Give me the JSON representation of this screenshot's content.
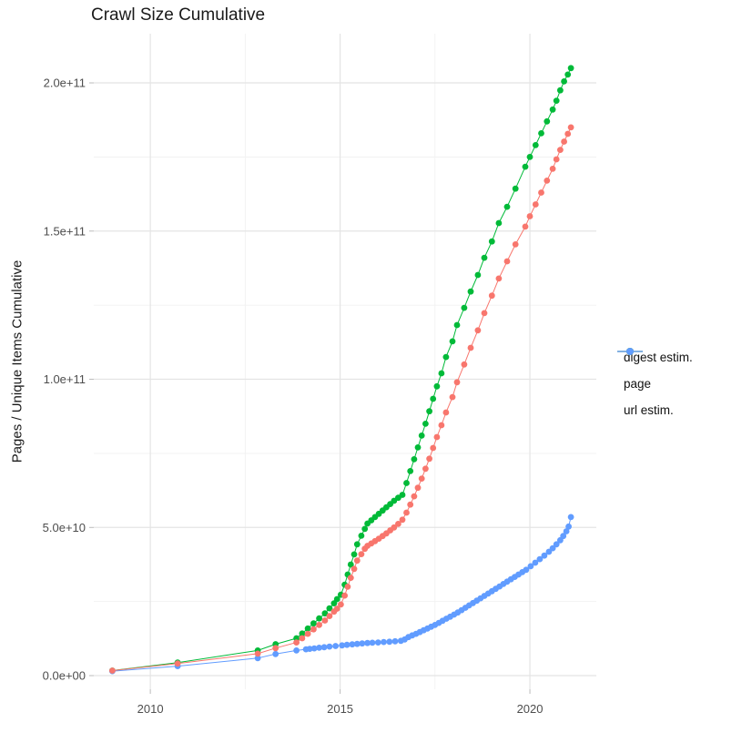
{
  "chart_data": {
    "type": "scatter",
    "title": "Crawl Size Cumulative",
    "xlabel": "",
    "ylabel": "Pages / Unique Items Cumulative",
    "legend_position": "right",
    "grid": "major and minor gridlines, light gray on white",
    "x_domain": [
      2008.51,
      2021.75
    ],
    "y_domain_billions": [
      -4.6,
      216.6
    ],
    "x_axis": {
      "ticks": [
        {
          "value": 2010,
          "label": "2010"
        },
        {
          "value": 2015,
          "label": "2015"
        },
        {
          "value": 2020,
          "label": "2020"
        }
      ],
      "minor": [
        2012.5,
        2017.5
      ]
    },
    "y_axis": {
      "ticks": [
        {
          "value_billions": 0,
          "label": "0.0e+00"
        },
        {
          "value_billions": 50,
          "label": "5.0e+10"
        },
        {
          "value_billions": 100,
          "label": "1.0e+11"
        },
        {
          "value_billions": 150,
          "label": "1.5e+11"
        },
        {
          "value_billions": 200,
          "label": "2.0e+11"
        }
      ],
      "minor_billions": [
        25,
        75,
        125,
        175
      ]
    },
    "draw_order": [
      "page",
      "url estim.",
      "digest estim."
    ],
    "series": [
      {
        "name": "digest estim.",
        "color": "#F8766D",
        "points_year_billions": [
          [
            2009.0,
            1.7
          ],
          [
            2010.72,
            4.1
          ],
          [
            2012.83,
            7.4
          ],
          [
            2013.3,
            9.3
          ],
          [
            2013.85,
            11.2
          ],
          [
            2014.0,
            12.6
          ],
          [
            2014.15,
            14.1
          ],
          [
            2014.3,
            15.6
          ],
          [
            2014.45,
            17.1
          ],
          [
            2014.6,
            18.6
          ],
          [
            2014.72,
            20.1
          ],
          [
            2014.84,
            21.6
          ],
          [
            2014.92,
            22.6
          ],
          [
            2015.02,
            24.0
          ],
          [
            2015.12,
            27.0
          ],
          [
            2015.2,
            30.0
          ],
          [
            2015.28,
            33.0
          ],
          [
            2015.37,
            36.0
          ],
          [
            2015.45,
            38.8
          ],
          [
            2015.56,
            41.0
          ],
          [
            2015.65,
            42.8
          ],
          [
            2015.72,
            43.8
          ],
          [
            2015.82,
            44.6
          ],
          [
            2015.92,
            45.4
          ],
          [
            2016.02,
            46.2
          ],
          [
            2016.12,
            47.1
          ],
          [
            2016.22,
            48.0
          ],
          [
            2016.32,
            49.0
          ],
          [
            2016.42,
            50.0
          ],
          [
            2016.53,
            51.2
          ],
          [
            2016.64,
            52.6
          ],
          [
            2016.75,
            55.0
          ],
          [
            2016.85,
            57.7
          ],
          [
            2016.95,
            60.5
          ],
          [
            2017.05,
            63.4
          ],
          [
            2017.15,
            66.5
          ],
          [
            2017.25,
            69.8
          ],
          [
            2017.35,
            73.2
          ],
          [
            2017.45,
            76.8
          ],
          [
            2017.55,
            80.5
          ],
          [
            2017.67,
            84.5
          ],
          [
            2017.79,
            88.8
          ],
          [
            2017.96,
            94.0
          ],
          [
            2018.08,
            99.0
          ],
          [
            2018.27,
            105.0
          ],
          [
            2018.44,
            110.6
          ],
          [
            2018.63,
            116.5
          ],
          [
            2018.8,
            122.3
          ],
          [
            2019.0,
            128.2
          ],
          [
            2019.18,
            134.0
          ],
          [
            2019.4,
            139.8
          ],
          [
            2019.62,
            145.5
          ],
          [
            2019.88,
            151.5
          ],
          [
            2020.0,
            155.0
          ],
          [
            2020.15,
            159.0
          ],
          [
            2020.3,
            163.0
          ],
          [
            2020.45,
            167.0
          ],
          [
            2020.6,
            171.0
          ],
          [
            2020.7,
            174.2
          ],
          [
            2020.8,
            177.4
          ],
          [
            2020.9,
            180.2
          ],
          [
            2021.0,
            182.8
          ],
          [
            2021.08,
            185.0
          ]
        ]
      },
      {
        "name": "page",
        "color": "#00BA38",
        "points_year_billions": [
          [
            2009.0,
            1.7
          ],
          [
            2010.72,
            4.4
          ],
          [
            2012.83,
            8.5
          ],
          [
            2013.3,
            10.6
          ],
          [
            2013.85,
            12.6
          ],
          [
            2014.0,
            14.2
          ],
          [
            2014.15,
            15.9
          ],
          [
            2014.3,
            17.6
          ],
          [
            2014.45,
            19.3
          ],
          [
            2014.6,
            21.0
          ],
          [
            2014.72,
            22.7
          ],
          [
            2014.84,
            24.4
          ],
          [
            2014.92,
            25.8
          ],
          [
            2015.02,
            27.3
          ],
          [
            2015.12,
            30.7
          ],
          [
            2015.2,
            34.1
          ],
          [
            2015.28,
            37.5
          ],
          [
            2015.37,
            40.9
          ],
          [
            2015.45,
            44.3
          ],
          [
            2015.56,
            47.2
          ],
          [
            2015.65,
            49.5
          ],
          [
            2015.72,
            51.3
          ],
          [
            2015.82,
            52.4
          ],
          [
            2015.92,
            53.5
          ],
          [
            2016.02,
            54.6
          ],
          [
            2016.12,
            55.7
          ],
          [
            2016.22,
            56.8
          ],
          [
            2016.32,
            57.9
          ],
          [
            2016.42,
            59.0
          ],
          [
            2016.53,
            60.0
          ],
          [
            2016.64,
            61.0
          ],
          [
            2016.75,
            65.0
          ],
          [
            2016.85,
            69.0
          ],
          [
            2016.95,
            73.0
          ],
          [
            2017.05,
            77.0
          ],
          [
            2017.15,
            81.0
          ],
          [
            2017.25,
            85.0
          ],
          [
            2017.35,
            89.2
          ],
          [
            2017.45,
            93.4
          ],
          [
            2017.55,
            97.6
          ],
          [
            2017.67,
            102.0
          ],
          [
            2017.79,
            107.5
          ],
          [
            2017.96,
            112.8
          ],
          [
            2018.08,
            118.3
          ],
          [
            2018.27,
            124.1
          ],
          [
            2018.44,
            129.6
          ],
          [
            2018.63,
            135.2
          ],
          [
            2018.8,
            141.0
          ],
          [
            2019.0,
            146.5
          ],
          [
            2019.18,
            152.7
          ],
          [
            2019.4,
            158.2
          ],
          [
            2019.62,
            164.3
          ],
          [
            2019.88,
            171.7
          ],
          [
            2020.0,
            175.0
          ],
          [
            2020.15,
            179.0
          ],
          [
            2020.3,
            183.0
          ],
          [
            2020.45,
            187.0
          ],
          [
            2020.6,
            191.0
          ],
          [
            2020.7,
            194.0
          ],
          [
            2020.8,
            197.5
          ],
          [
            2020.9,
            200.5
          ],
          [
            2021.0,
            202.8
          ],
          [
            2021.08,
            205.0
          ]
        ]
      },
      {
        "name": "url estim.",
        "color": "#619CFF",
        "points_year_billions": [
          [
            2009.0,
            1.5
          ],
          [
            2010.72,
            3.2
          ],
          [
            2012.83,
            5.9
          ],
          [
            2013.3,
            7.3
          ],
          [
            2013.85,
            8.5
          ],
          [
            2014.1,
            8.9
          ],
          [
            2014.2,
            9.05
          ],
          [
            2014.32,
            9.2
          ],
          [
            2014.45,
            9.4
          ],
          [
            2014.58,
            9.6
          ],
          [
            2014.72,
            9.8
          ],
          [
            2014.88,
            10.0
          ],
          [
            2015.05,
            10.2
          ],
          [
            2015.18,
            10.4
          ],
          [
            2015.32,
            10.55
          ],
          [
            2015.45,
            10.7
          ],
          [
            2015.58,
            10.85
          ],
          [
            2015.72,
            11.0
          ],
          [
            2015.85,
            11.1
          ],
          [
            2016.0,
            11.2
          ],
          [
            2016.15,
            11.35
          ],
          [
            2016.3,
            11.45
          ],
          [
            2016.45,
            11.6
          ],
          [
            2016.6,
            11.75
          ],
          [
            2016.7,
            12.2
          ],
          [
            2016.8,
            13.0
          ],
          [
            2016.9,
            13.6
          ],
          [
            2017.0,
            14.1
          ],
          [
            2017.1,
            14.7
          ],
          [
            2017.2,
            15.3
          ],
          [
            2017.3,
            15.9
          ],
          [
            2017.4,
            16.5
          ],
          [
            2017.5,
            17.1
          ],
          [
            2017.6,
            17.8
          ],
          [
            2017.7,
            18.5
          ],
          [
            2017.8,
            19.2
          ],
          [
            2017.9,
            19.9
          ],
          [
            2018.0,
            20.6
          ],
          [
            2018.1,
            21.3
          ],
          [
            2018.2,
            22.1
          ],
          [
            2018.3,
            22.9
          ],
          [
            2018.4,
            23.7
          ],
          [
            2018.5,
            24.5
          ],
          [
            2018.6,
            25.3
          ],
          [
            2018.7,
            26.1
          ],
          [
            2018.8,
            26.9
          ],
          [
            2018.9,
            27.7
          ],
          [
            2019.0,
            28.5
          ],
          [
            2019.1,
            29.3
          ],
          [
            2019.2,
            30.1
          ],
          [
            2019.3,
            30.9
          ],
          [
            2019.4,
            31.7
          ],
          [
            2019.5,
            32.5
          ],
          [
            2019.6,
            33.3
          ],
          [
            2019.7,
            34.1
          ],
          [
            2019.8,
            34.9
          ],
          [
            2019.9,
            35.7
          ],
          [
            2020.02,
            36.9
          ],
          [
            2020.14,
            38.1
          ],
          [
            2020.26,
            39.3
          ],
          [
            2020.38,
            40.5
          ],
          [
            2020.5,
            41.8
          ],
          [
            2020.6,
            43.0
          ],
          [
            2020.7,
            44.3
          ],
          [
            2020.8,
            45.7
          ],
          [
            2020.88,
            47.1
          ],
          [
            2020.96,
            48.7
          ],
          [
            2021.02,
            50.3
          ],
          [
            2021.08,
            53.5
          ]
        ]
      }
    ]
  }
}
